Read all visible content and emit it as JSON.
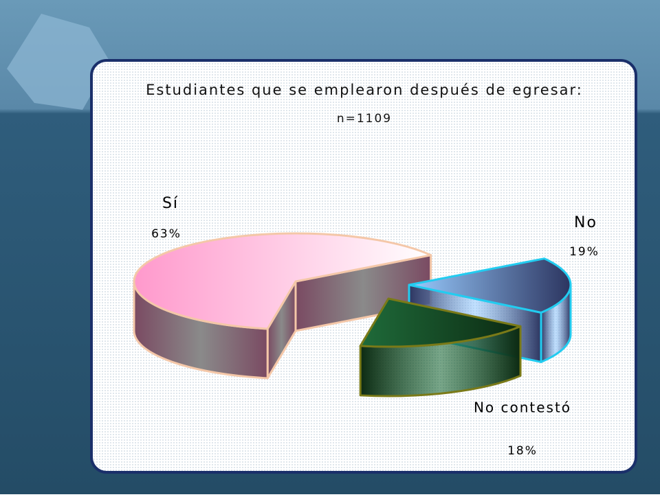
{
  "chart_data": {
    "type": "pie3d",
    "title": "Estudiantes que se emplearon después de egresar:",
    "subtitle": "n=1109",
    "categories": [
      "Sí",
      "No",
      "No contestó"
    ],
    "values": [
      63,
      19,
      18
    ],
    "value_labels": [
      "63%",
      "19%",
      "18%"
    ],
    "colors": [
      "#ff99cc",
      "#99ccff",
      "#1f6b3a"
    ]
  }
}
